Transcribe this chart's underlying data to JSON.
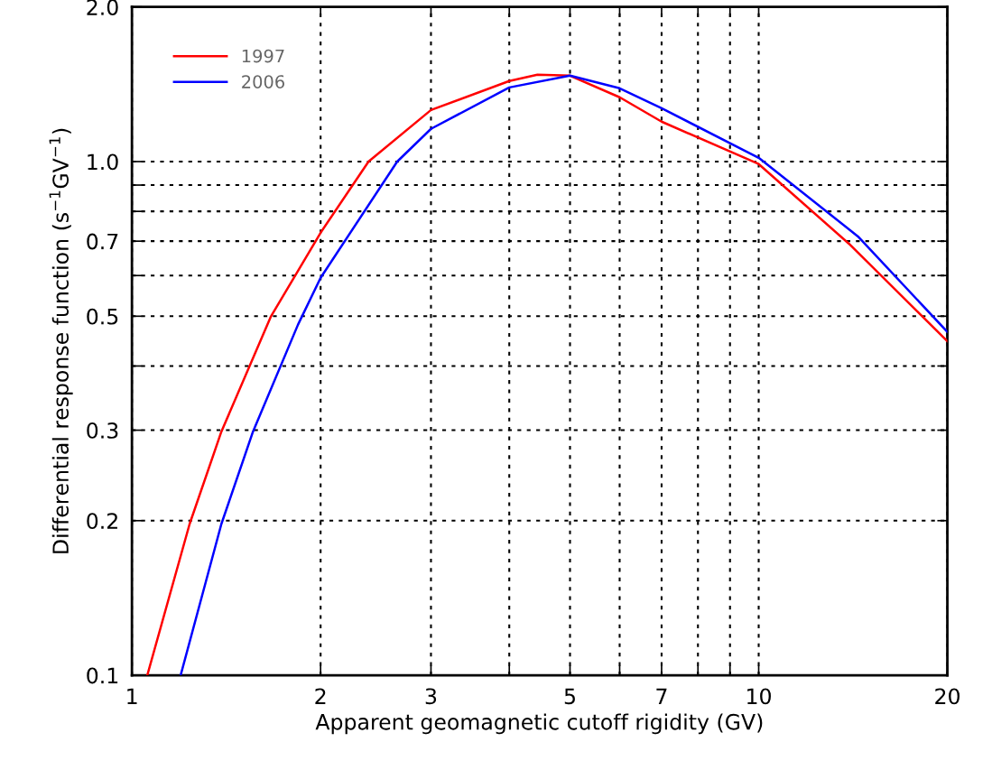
{
  "chart_data": {
    "type": "line",
    "xlabel": "Apparent geomagnetic cutoff rigidity (GV)",
    "ylabel": "Differential response function (s$^{−1}$GV$^{−1}$)",
    "log": "xy",
    "xlim": [
      1,
      20
    ],
    "ylim": [
      0.1,
      2.0
    ],
    "xticks": [
      1,
      2,
      3,
      {
        "value": 4,
        "label": null
      },
      5,
      {
        "value": 6,
        "label": null
      },
      7,
      {
        "value": 8,
        "label": null
      },
      {
        "value": 9,
        "label": null
      },
      10,
      20
    ],
    "yticks": [
      0.1,
      0.2,
      0.3,
      {
        "value": 0.4,
        "label": null
      },
      0.5,
      {
        "value": 0.6,
        "label": null
      },
      0.7,
      {
        "value": 0.8,
        "label": null
      },
      {
        "value": 0.9,
        "label": null
      },
      {
        "value": 1.0,
        "label": "1.0"
      },
      {
        "value": 2.0,
        "label": "2.0"
      }
    ],
    "grid": true,
    "legend": "top left",
    "marker": "none",
    "line_style": "solid",
    "series": [
      {
        "name": "1997",
        "color": "#ff0000",
        "x": [
          1.058,
          1.236,
          1.389,
          1.667,
          2,
          2.385,
          3,
          4,
          4.436,
          5,
          6,
          7,
          10,
          13.93,
          20
        ],
        "values": [
          0.1,
          0.197,
          0.298,
          0.5,
          0.727,
          1.0,
          1.26,
          1.435,
          1.476,
          1.47,
          1.334,
          1.196,
          0.989,
          0.692,
          0.447
        ]
      },
      {
        "name": "2006",
        "color": "#0000ff",
        "x": [
          1.196,
          1.389,
          1.56,
          1.84,
          2,
          2.65,
          3,
          4,
          5,
          6,
          7,
          10,
          14.4,
          20
        ],
        "values": [
          0.1,
          0.197,
          0.298,
          0.481,
          0.594,
          1.0,
          1.158,
          1.394,
          1.47,
          1.389,
          1.27,
          1.017,
          0.715,
          0.466
        ]
      }
    ]
  }
}
